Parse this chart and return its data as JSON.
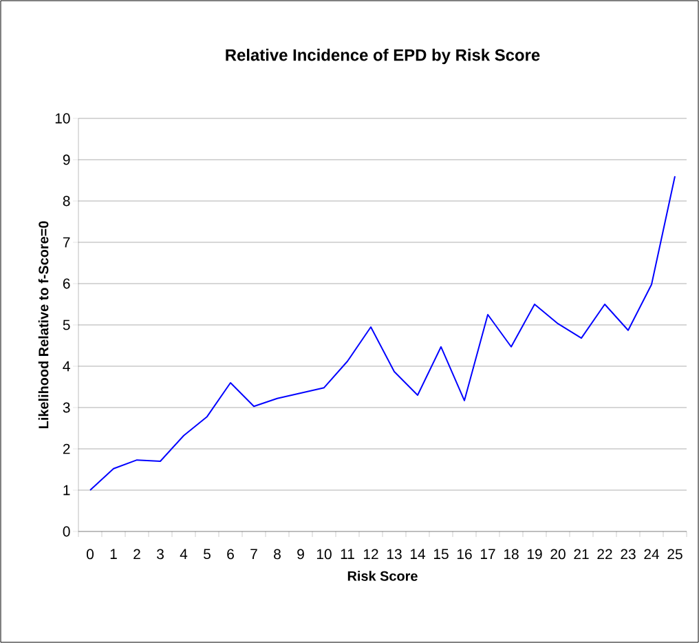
{
  "chart_data": {
    "type": "line",
    "title": "Relative Incidence of EPD by Risk Score",
    "xlabel": "Risk Score",
    "ylabel": "Likelihood Relative to f-Score=0",
    "categories": [
      "0",
      "1",
      "2",
      "3",
      "4",
      "5",
      "6",
      "7",
      "8",
      "9",
      "10",
      "11",
      "12",
      "13",
      "14",
      "15",
      "16",
      "17",
      "18",
      "19",
      "20",
      "21",
      "22",
      "23",
      "24",
      "25"
    ],
    "series": [
      {
        "color": "#0000ff",
        "values": [
          1.0,
          1.52,
          1.73,
          1.7,
          2.32,
          2.78,
          3.6,
          3.03,
          3.22,
          3.35,
          3.48,
          4.12,
          4.95,
          3.87,
          3.3,
          4.47,
          3.17,
          5.25,
          4.47,
          5.5,
          5.03,
          4.68,
          5.5,
          4.87,
          5.98,
          8.6
        ]
      }
    ],
    "ylim": [
      0,
      10
    ],
    "yticks": [
      0,
      1,
      2,
      3,
      4,
      5,
      6,
      7,
      8,
      9,
      10
    ],
    "grid": "y",
    "marker": "none",
    "line_style": "solid"
  }
}
